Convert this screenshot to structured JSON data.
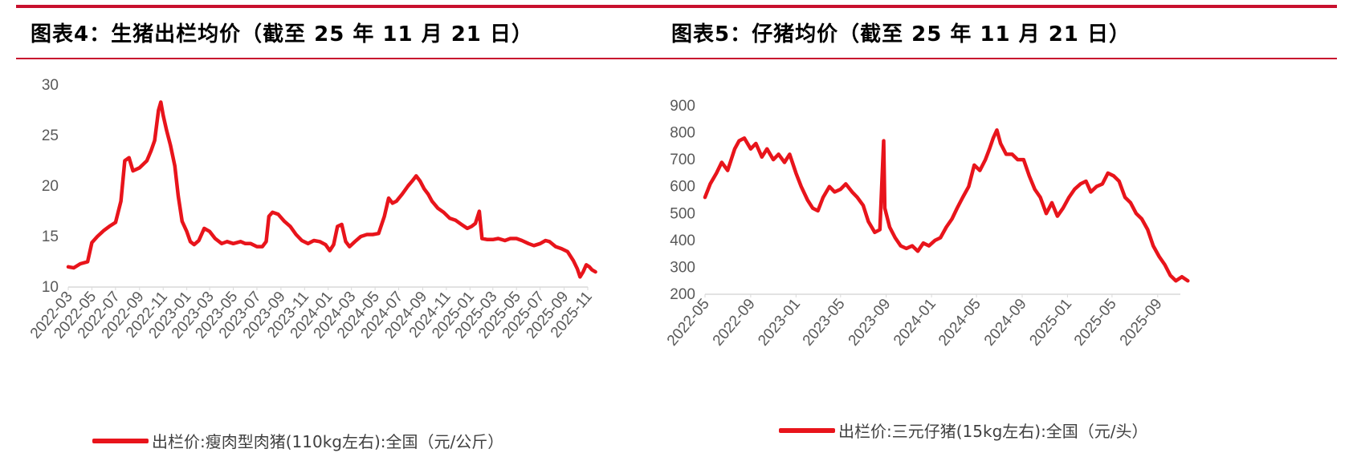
{
  "figures": [
    {
      "title": "图表4：生猪出栏均价（截至 25 年 11 月 21 日）",
      "legend": "出栏价:瘦肉型肉猪(110kg左右):全国（元/公斤）"
    },
    {
      "title": "图表5：仔猪均价（截至 25 年 11 月 21 日）",
      "legend": "出栏价:三元仔猪(15kg左右):全国（元/头）"
    }
  ],
  "colors": {
    "accent": "#c8102e",
    "series": "#e8141b",
    "axis": "#d9d9d9",
    "tick": "#595959"
  },
  "chart_data": [
    {
      "type": "line",
      "title": "",
      "xlabel": "",
      "ylabel": "",
      "x_start": "2022-03",
      "x_end": "2025-11",
      "ylim": [
        10,
        30
      ],
      "yticks": [
        10,
        15,
        20,
        25,
        30
      ],
      "xticks": [
        "2022-03",
        "2022-05",
        "2022-07",
        "2022-09",
        "2022-11",
        "2023-01",
        "2023-03",
        "2023-05",
        "2023-07",
        "2023-09",
        "2023-11",
        "2024-01",
        "2024-03",
        "2024-05",
        "2024-07",
        "2024-09",
        "2024-11",
        "2025-01",
        "2025-03",
        "2025-05",
        "2025-07",
        "2025-09",
        "2025-11"
      ],
      "grid": false,
      "legend": "bottom",
      "series": [
        {
          "name": "出栏价:瘦肉型肉猪(110kg左右):全国（元/公斤）",
          "points": [
            [
              "2022-03-01",
              12.0
            ],
            [
              "2022-03-15",
              11.9
            ],
            [
              "2022-04-01",
              12.3
            ],
            [
              "2022-04-20",
              12.5
            ],
            [
              "2022-05-01",
              14.4
            ],
            [
              "2022-05-15",
              15.0
            ],
            [
              "2022-06-01",
              15.6
            ],
            [
              "2022-06-15",
              16.0
            ],
            [
              "2022-07-01",
              16.4
            ],
            [
              "2022-07-15",
              18.5
            ],
            [
              "2022-07-25",
              22.5
            ],
            [
              "2022-08-05",
              22.8
            ],
            [
              "2022-08-15",
              21.5
            ],
            [
              "2022-09-01",
              21.8
            ],
            [
              "2022-09-20",
              22.5
            ],
            [
              "2022-10-01",
              23.5
            ],
            [
              "2022-10-10",
              24.5
            ],
            [
              "2022-10-20",
              27.5
            ],
            [
              "2022-10-26",
              28.3
            ],
            [
              "2022-11-01",
              27.0
            ],
            [
              "2022-11-10",
              25.5
            ],
            [
              "2022-11-20",
              24.0
            ],
            [
              "2022-12-01",
              22.0
            ],
            [
              "2022-12-10",
              19.0
            ],
            [
              "2022-12-20",
              16.5
            ],
            [
              "2023-01-01",
              15.5
            ],
            [
              "2023-01-10",
              14.5
            ],
            [
              "2023-01-20",
              14.2
            ],
            [
              "2023-02-01",
              14.6
            ],
            [
              "2023-02-15",
              15.8
            ],
            [
              "2023-03-01",
              15.5
            ],
            [
              "2023-03-15",
              14.8
            ],
            [
              "2023-04-01",
              14.3
            ],
            [
              "2023-04-15",
              14.5
            ],
            [
              "2023-05-01",
              14.3
            ],
            [
              "2023-05-20",
              14.5
            ],
            [
              "2023-06-01",
              14.3
            ],
            [
              "2023-06-15",
              14.3
            ],
            [
              "2023-07-01",
              14.0
            ],
            [
              "2023-07-15",
              14.0
            ],
            [
              "2023-07-25",
              14.5
            ],
            [
              "2023-08-01",
              17.0
            ],
            [
              "2023-08-10",
              17.4
            ],
            [
              "2023-08-25",
              17.2
            ],
            [
              "2023-09-10",
              16.5
            ],
            [
              "2023-09-25",
              16.0
            ],
            [
              "2023-10-10",
              15.2
            ],
            [
              "2023-10-25",
              14.6
            ],
            [
              "2023-11-10",
              14.3
            ],
            [
              "2023-11-25",
              14.6
            ],
            [
              "2023-12-10",
              14.5
            ],
            [
              "2023-12-25",
              14.2
            ],
            [
              "2024-01-05",
              13.6
            ],
            [
              "2024-01-15",
              14.2
            ],
            [
              "2024-01-25",
              16.0
            ],
            [
              "2024-02-05",
              16.2
            ],
            [
              "2024-02-15",
              14.5
            ],
            [
              "2024-02-25",
              14.0
            ],
            [
              "2024-03-10",
              14.5
            ],
            [
              "2024-03-25",
              15.0
            ],
            [
              "2024-04-10",
              15.2
            ],
            [
              "2024-04-25",
              15.2
            ],
            [
              "2024-05-10",
              15.3
            ],
            [
              "2024-05-25",
              17.0
            ],
            [
              "2024-06-05",
              18.8
            ],
            [
              "2024-06-15",
              18.3
            ],
            [
              "2024-06-25",
              18.5
            ],
            [
              "2024-07-10",
              19.2
            ],
            [
              "2024-07-25",
              20.0
            ],
            [
              "2024-08-05",
              20.5
            ],
            [
              "2024-08-15",
              21.0
            ],
            [
              "2024-08-25",
              20.5
            ],
            [
              "2024-09-05",
              19.7
            ],
            [
              "2024-09-15",
              19.2
            ],
            [
              "2024-09-25",
              18.5
            ],
            [
              "2024-10-10",
              17.8
            ],
            [
              "2024-10-25",
              17.4
            ],
            [
              "2024-11-10",
              16.8
            ],
            [
              "2024-11-25",
              16.6
            ],
            [
              "2024-12-10",
              16.2
            ],
            [
              "2024-12-25",
              15.8
            ],
            [
              "2025-01-05",
              16.0
            ],
            [
              "2025-01-15",
              16.3
            ],
            [
              "2025-01-25",
              17.5
            ],
            [
              "2025-02-01",
              14.8
            ],
            [
              "2025-02-15",
              14.7
            ],
            [
              "2025-03-01",
              14.7
            ],
            [
              "2025-03-15",
              14.8
            ],
            [
              "2025-04-01",
              14.6
            ],
            [
              "2025-04-15",
              14.8
            ],
            [
              "2025-05-01",
              14.8
            ],
            [
              "2025-05-15",
              14.6
            ],
            [
              "2025-06-01",
              14.3
            ],
            [
              "2025-06-15",
              14.1
            ],
            [
              "2025-07-01",
              14.3
            ],
            [
              "2025-07-15",
              14.6
            ],
            [
              "2025-07-25",
              14.5
            ],
            [
              "2025-08-10",
              14.0
            ],
            [
              "2025-08-25",
              13.8
            ],
            [
              "2025-09-10",
              13.5
            ],
            [
              "2025-09-25",
              12.6
            ],
            [
              "2025-10-05",
              11.8
            ],
            [
              "2025-10-12",
              11.0
            ],
            [
              "2025-10-20",
              11.5
            ],
            [
              "2025-10-28",
              12.2
            ],
            [
              "2025-11-05",
              12.0
            ],
            [
              "2025-11-12",
              11.7
            ],
            [
              "2025-11-21",
              11.5
            ]
          ]
        }
      ]
    },
    {
      "type": "line",
      "title": "",
      "xlabel": "",
      "ylabel": "",
      "x_start": "2022-05",
      "x_end": "2025-11",
      "ylim": [
        200,
        900
      ],
      "yticks": [
        200,
        300,
        400,
        500,
        600,
        700,
        800,
        900
      ],
      "xticks": [
        "2022-05",
        "2022-09",
        "2023-01",
        "2023-05",
        "2023-09",
        "2024-01",
        "2024-05",
        "2024-09",
        "2025-01",
        "2025-05",
        "2025-09"
      ],
      "grid": false,
      "legend": "bottom",
      "series": [
        {
          "name": "出栏价:三元仔猪(15kg左右):全国（元/头）",
          "points": [
            [
              "2022-05-01",
              560
            ],
            [
              "2022-05-15",
              610
            ],
            [
              "2022-06-01",
              650
            ],
            [
              "2022-06-15",
              690
            ],
            [
              "2022-07-01",
              660
            ],
            [
              "2022-07-20",
              740
            ],
            [
              "2022-08-01",
              770
            ],
            [
              "2022-08-15",
              780
            ],
            [
              "2022-09-01",
              740
            ],
            [
              "2022-09-15",
              760
            ],
            [
              "2022-10-01",
              710
            ],
            [
              "2022-10-15",
              740
            ],
            [
              "2022-11-01",
              700
            ],
            [
              "2022-11-15",
              720
            ],
            [
              "2022-12-01",
              690
            ],
            [
              "2022-12-15",
              720
            ],
            [
              "2023-01-01",
              650
            ],
            [
              "2023-01-15",
              600
            ],
            [
              "2023-02-01",
              550
            ],
            [
              "2023-02-15",
              520
            ],
            [
              "2023-03-01",
              510
            ],
            [
              "2023-03-15",
              560
            ],
            [
              "2023-04-01",
              600
            ],
            [
              "2023-04-15",
              580
            ],
            [
              "2023-05-01",
              590
            ],
            [
              "2023-05-15",
              610
            ],
            [
              "2023-06-01",
              580
            ],
            [
              "2023-06-15",
              560
            ],
            [
              "2023-07-01",
              530
            ],
            [
              "2023-07-15",
              470
            ],
            [
              "2023-08-01",
              430
            ],
            [
              "2023-08-15",
              440
            ],
            [
              "2023-08-25",
              770
            ],
            [
              "2023-08-28",
              520
            ],
            [
              "2023-09-10",
              450
            ],
            [
              "2023-09-25",
              410
            ],
            [
              "2023-10-10",
              380
            ],
            [
              "2023-10-25",
              370
            ],
            [
              "2023-11-10",
              380
            ],
            [
              "2023-11-25",
              360
            ],
            [
              "2023-12-10",
              390
            ],
            [
              "2023-12-25",
              380
            ],
            [
              "2024-01-10",
              400
            ],
            [
              "2024-01-25",
              410
            ],
            [
              "2024-02-10",
              450
            ],
            [
              "2024-02-25",
              480
            ],
            [
              "2024-03-10",
              520
            ],
            [
              "2024-03-25",
              560
            ],
            [
              "2024-04-10",
              600
            ],
            [
              "2024-04-25",
              680
            ],
            [
              "2024-05-10",
              660
            ],
            [
              "2024-05-25",
              700
            ],
            [
              "2024-06-05",
              740
            ],
            [
              "2024-06-15",
              780
            ],
            [
              "2024-06-25",
              810
            ],
            [
              "2024-07-05",
              760
            ],
            [
              "2024-07-20",
              720
            ],
            [
              "2024-08-05",
              720
            ],
            [
              "2024-08-20",
              700
            ],
            [
              "2024-09-05",
              700
            ],
            [
              "2024-09-20",
              640
            ],
            [
              "2024-10-05",
              590
            ],
            [
              "2024-10-20",
              560
            ],
            [
              "2024-11-05",
              500
            ],
            [
              "2024-11-20",
              540
            ],
            [
              "2024-12-05",
              490
            ],
            [
              "2024-12-20",
              520
            ],
            [
              "2025-01-05",
              560
            ],
            [
              "2025-01-20",
              590
            ],
            [
              "2025-02-05",
              610
            ],
            [
              "2025-02-20",
              620
            ],
            [
              "2025-03-05",
              580
            ],
            [
              "2025-03-20",
              600
            ],
            [
              "2025-04-05",
              610
            ],
            [
              "2025-04-20",
              650
            ],
            [
              "2025-05-05",
              640
            ],
            [
              "2025-05-20",
              620
            ],
            [
              "2025-06-05",
              560
            ],
            [
              "2025-06-20",
              540
            ],
            [
              "2025-07-05",
              500
            ],
            [
              "2025-07-20",
              480
            ],
            [
              "2025-08-05",
              440
            ],
            [
              "2025-08-20",
              380
            ],
            [
              "2025-09-05",
              340
            ],
            [
              "2025-09-20",
              310
            ],
            [
              "2025-10-05",
              270
            ],
            [
              "2025-10-20",
              250
            ],
            [
              "2025-11-05",
              265
            ],
            [
              "2025-11-21",
              250
            ]
          ]
        }
      ]
    }
  ]
}
